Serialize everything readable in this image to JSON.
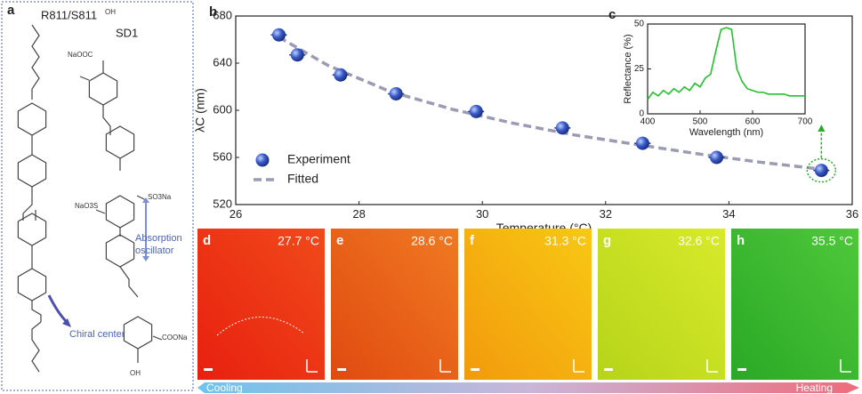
{
  "panel_a": {
    "label": "a",
    "title": "R811/S811",
    "dye": "SD1",
    "groups": [
      "NaOOC",
      "OH",
      "SO3Na",
      "NaO3S",
      "COONa",
      "OH"
    ],
    "annotations": [
      "Absorption",
      "oscillator",
      "Chiral center"
    ]
  },
  "chart_data": [
    {
      "type": "scatter",
      "panel_label": "b",
      "x_label": "Temperature (°C)",
      "y_label": "λC (nm)",
      "xlim": [
        26,
        36
      ],
      "xticks": [
        26,
        28,
        30,
        32,
        34,
        36
      ],
      "ylim": [
        520,
        680
      ],
      "yticks": [
        520,
        560,
        600,
        640,
        680
      ],
      "legend": "lower left",
      "series": [
        {
          "name": "Experiment",
          "color": "#2f4fb8",
          "x": [
            26.7,
            27.0,
            27.7,
            28.6,
            29.9,
            31.3,
            32.6,
            33.8,
            35.5
          ],
          "values": [
            664,
            647,
            630,
            614,
            599,
            585,
            572,
            560,
            549
          ]
        },
        {
          "name": "Fitted",
          "color": "#9b9bb4",
          "style": "dashed",
          "x": [
            26.7,
            27.5,
            28.5,
            29.5,
            30.5,
            31.5,
            32.5,
            33.5,
            34.5,
            35.5
          ],
          "values": [
            662,
            638,
            616,
            601,
            589,
            579,
            571,
            563,
            556,
            550
          ]
        }
      ]
    },
    {
      "type": "line",
      "panel_label": "c",
      "x_label": "Wavelength (nm)",
      "y_label": "Reflectance (%)",
      "xlim": [
        400,
        700
      ],
      "xticks": [
        400,
        500,
        600,
        700
      ],
      "ylim": [
        0,
        50
      ],
      "yticks": [
        0,
        25,
        50
      ],
      "series": [
        {
          "color": "#22c22a",
          "x": [
            400,
            410,
            420,
            430,
            440,
            450,
            460,
            470,
            480,
            490,
            500,
            510,
            520,
            530,
            540,
            550,
            560,
            570,
            580,
            590,
            600,
            610,
            620,
            630,
            640,
            650,
            660,
            670,
            680,
            690,
            700
          ],
          "values": [
            8,
            12,
            10,
            13,
            11,
            14,
            12,
            15,
            13,
            17,
            15,
            20,
            22,
            35,
            47,
            48,
            47,
            25,
            18,
            14,
            13,
            12,
            12,
            11,
            11,
            11,
            11,
            10,
            10,
            10,
            10
          ]
        }
      ]
    }
  ],
  "photos": [
    {
      "label": "d",
      "temperature": "27.7 °C",
      "colors": [
        "#e8200f",
        "#f04a1a"
      ]
    },
    {
      "label": "e",
      "temperature": "28.6 °C",
      "colors": [
        "#e04a10",
        "#f07a22"
      ]
    },
    {
      "label": "f",
      "temperature": "31.3 °C",
      "colors": [
        "#f29a0c",
        "#f8c814"
      ]
    },
    {
      "label": "g",
      "temperature": "32.6 °C",
      "colors": [
        "#b6d41a",
        "#d8ea2a"
      ]
    },
    {
      "label": "h",
      "temperature": "35.5 °C",
      "colors": [
        "#2aa826",
        "#4fc83a"
      ]
    }
  ],
  "arrow": {
    "left": "Cooling",
    "right": "Heating"
  }
}
